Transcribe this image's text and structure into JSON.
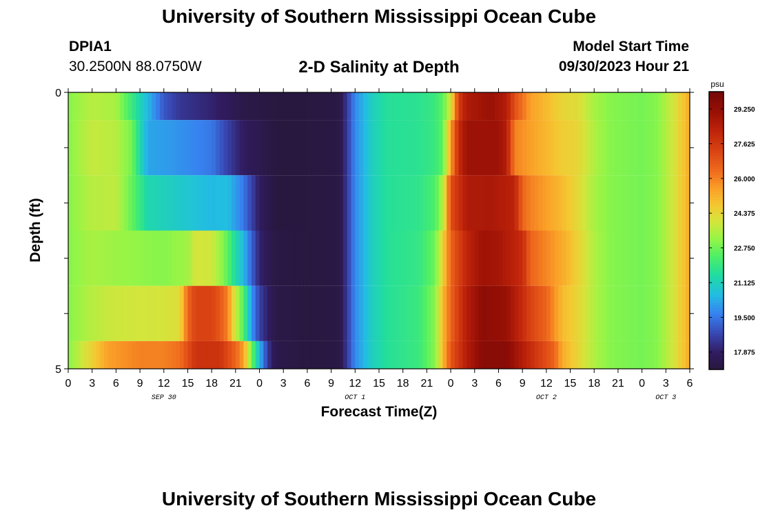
{
  "header": {
    "title": "University of Southern Mississippi Ocean Cube",
    "station": "DPIA1",
    "coords": "30.2500N  88.0750W",
    "plot_title": "2-D Salinity at Depth",
    "start_label": "Model Start Time",
    "start_value": "09/30/2023 Hour 21"
  },
  "footer": {
    "title": "University of Southern Mississippi Ocean Cube"
  },
  "chart_data": {
    "type": "heatmap",
    "title": "2-D Salinity at Depth",
    "xlabel": "Forecast Time(Z)",
    "ylabel": "Depth (ft)",
    "colorbar_unit": "psu",
    "colorbar_labels": [
      "29.250",
      "27.625",
      "26.000",
      "24.375",
      "22.750",
      "21.125",
      "19.500",
      "17.875"
    ],
    "colorbar_values": [
      29.25,
      27.625,
      26.0,
      24.375,
      22.75,
      21.125,
      19.5,
      17.875
    ],
    "vmin": 17.06,
    "vmax": 30.06,
    "x_tick_labels": [
      "0",
      "3",
      "6",
      "9",
      "12",
      "15",
      "18",
      "21",
      "0",
      "3",
      "6",
      "9",
      "12",
      "15",
      "18",
      "21",
      "0",
      "3",
      "6",
      "9",
      "12",
      "15",
      "18",
      "21",
      "0",
      "3",
      "6"
    ],
    "x_start_hour": 0,
    "x_end_hour": 78,
    "day_labels": [
      {
        "label": "SEP 30",
        "hour": 12
      },
      {
        "label": "OCT 1",
        "hour": 36
      },
      {
        "label": "OCT 2",
        "hour": 60
      },
      {
        "label": "OCT 3",
        "hour": 75
      }
    ],
    "y_tick_labels": [
      "0",
      "5"
    ],
    "y_range": [
      0,
      5
    ],
    "depth_levels": [
      0,
      1,
      2,
      3,
      4,
      5
    ],
    "profiles": [
      {
        "depth": 0,
        "points": [
          [
            0,
            23.0
          ],
          [
            3,
            23.6
          ],
          [
            6,
            23.4
          ],
          [
            8,
            22.0
          ],
          [
            10,
            20.5
          ],
          [
            12,
            19.0
          ],
          [
            14,
            18.4
          ],
          [
            18,
            18.0
          ],
          [
            20,
            17.7
          ],
          [
            22,
            17.3
          ],
          [
            26,
            17.1
          ],
          [
            30,
            17.1
          ],
          [
            34,
            17.2
          ],
          [
            35,
            18.5
          ],
          [
            36,
            19.8
          ],
          [
            38,
            21.0
          ],
          [
            40,
            21.6
          ],
          [
            44,
            21.7
          ],
          [
            46,
            22.0
          ],
          [
            47,
            22.5
          ],
          [
            48,
            24.0
          ],
          [
            49,
            27.5
          ],
          [
            50,
            28.6
          ],
          [
            53,
            29.1
          ],
          [
            55,
            28.5
          ],
          [
            56,
            27.0
          ],
          [
            58,
            25.5
          ],
          [
            60,
            25.0
          ],
          [
            62,
            24.4
          ],
          [
            64,
            24.2
          ],
          [
            66,
            23.4
          ],
          [
            68,
            23.0
          ],
          [
            72,
            22.8
          ],
          [
            74,
            23.0
          ],
          [
            76,
            24.0
          ],
          [
            78,
            25.3
          ]
        ]
      },
      {
        "depth": 1,
        "points": [
          [
            0,
            23.0
          ],
          [
            3,
            23.8
          ],
          [
            6,
            23.6
          ],
          [
            8,
            22.8
          ],
          [
            9,
            21.4
          ],
          [
            10,
            20.2
          ],
          [
            13,
            20.0
          ],
          [
            18,
            19.5
          ],
          [
            20,
            18.6
          ],
          [
            22,
            17.8
          ],
          [
            26,
            17.1
          ],
          [
            30,
            17.1
          ],
          [
            34,
            17.2
          ],
          [
            35,
            18.5
          ],
          [
            36,
            19.8
          ],
          [
            38,
            21.0
          ],
          [
            40,
            21.6
          ],
          [
            44,
            21.7
          ],
          [
            46,
            22.0
          ],
          [
            47,
            22.5
          ],
          [
            48,
            25.5
          ],
          [
            49,
            28.0
          ],
          [
            50,
            29.0
          ],
          [
            54,
            29.0
          ],
          [
            55,
            28.5
          ],
          [
            56,
            26.0
          ],
          [
            58,
            25.5
          ],
          [
            62,
            24.6
          ],
          [
            64,
            24.4
          ],
          [
            66,
            23.5
          ],
          [
            68,
            23.0
          ],
          [
            72,
            22.8
          ],
          [
            74,
            23.0
          ],
          [
            76,
            24.0
          ],
          [
            78,
            25.3
          ]
        ]
      },
      {
        "depth": 2,
        "points": [
          [
            0,
            23.0
          ],
          [
            3,
            23.6
          ],
          [
            6,
            23.7
          ],
          [
            8,
            22.6
          ],
          [
            10,
            21.3
          ],
          [
            13,
            21.0
          ],
          [
            18,
            20.5
          ],
          [
            20,
            20.6
          ],
          [
            22,
            19.5
          ],
          [
            24,
            17.8
          ],
          [
            26,
            17.1
          ],
          [
            30,
            17.1
          ],
          [
            34,
            17.2
          ],
          [
            35,
            18.5
          ],
          [
            36,
            19.8
          ],
          [
            38,
            21.0
          ],
          [
            40,
            21.6
          ],
          [
            44,
            21.8
          ],
          [
            46,
            22.3
          ],
          [
            47,
            23.5
          ],
          [
            48,
            27.0
          ],
          [
            50,
            28.6
          ],
          [
            53,
            28.7
          ],
          [
            56,
            28.3
          ],
          [
            57,
            26.5
          ],
          [
            58,
            26.0
          ],
          [
            62,
            25.0
          ],
          [
            64,
            24.3
          ],
          [
            66,
            23.4
          ],
          [
            68,
            23.0
          ],
          [
            72,
            22.8
          ],
          [
            74,
            23.0
          ],
          [
            76,
            24.0
          ],
          [
            78,
            25.3
          ]
        ]
      },
      {
        "depth": 3,
        "points": [
          [
            0,
            23.0
          ],
          [
            3,
            23.4
          ],
          [
            7,
            23.2
          ],
          [
            12,
            23.0
          ],
          [
            15,
            23.3
          ],
          [
            16,
            24.0
          ],
          [
            18,
            23.9
          ],
          [
            19,
            23.3
          ],
          [
            20,
            22.5
          ],
          [
            21,
            21.4
          ],
          [
            22,
            20.5
          ],
          [
            23,
            19.2
          ],
          [
            24,
            18.0
          ],
          [
            26,
            17.2
          ],
          [
            30,
            17.1
          ],
          [
            34,
            17.2
          ],
          [
            35,
            18.5
          ],
          [
            36,
            19.8
          ],
          [
            38,
            21.0
          ],
          [
            40,
            21.6
          ],
          [
            44,
            21.9
          ],
          [
            46,
            22.7
          ],
          [
            47,
            24.5
          ],
          [
            48,
            26.5
          ],
          [
            50,
            28.2
          ],
          [
            52,
            29.0
          ],
          [
            54,
            28.8
          ],
          [
            57,
            28.0
          ],
          [
            58,
            26.5
          ],
          [
            62,
            25.3
          ],
          [
            64,
            24.5
          ],
          [
            66,
            23.5
          ],
          [
            68,
            23.0
          ],
          [
            72,
            22.8
          ],
          [
            74,
            23.0
          ],
          [
            76,
            24.0
          ],
          [
            78,
            25.3
          ]
        ]
      },
      {
        "depth": 4,
        "points": [
          [
            0,
            23.0
          ],
          [
            3,
            23.6
          ],
          [
            6,
            23.9
          ],
          [
            12,
            24.0
          ],
          [
            14,
            24.2
          ],
          [
            15,
            26.5
          ],
          [
            16,
            27.3
          ],
          [
            18,
            27.3
          ],
          [
            19,
            26.8
          ],
          [
            20,
            26.0
          ],
          [
            21,
            23.8
          ],
          [
            22,
            22.4
          ],
          [
            23,
            20.0
          ],
          [
            24,
            18.6
          ],
          [
            26,
            17.3
          ],
          [
            30,
            17.1
          ],
          [
            34,
            17.2
          ],
          [
            35,
            18.5
          ],
          [
            36,
            19.8
          ],
          [
            38,
            21.0
          ],
          [
            40,
            21.6
          ],
          [
            44,
            22.0
          ],
          [
            46,
            23.0
          ],
          [
            47,
            25.0
          ],
          [
            48,
            26.5
          ],
          [
            50,
            28.5
          ],
          [
            52,
            29.4
          ],
          [
            55,
            29.1
          ],
          [
            57,
            28.0
          ],
          [
            58,
            27.3
          ],
          [
            60,
            26.5
          ],
          [
            62,
            25.0
          ],
          [
            64,
            24.4
          ],
          [
            66,
            23.5
          ],
          [
            68,
            23.0
          ],
          [
            72,
            22.8
          ],
          [
            74,
            23.0
          ],
          [
            76,
            24.0
          ],
          [
            78,
            25.3
          ]
        ]
      },
      {
        "depth": 5,
        "points": [
          [
            0,
            23.0
          ],
          [
            2,
            24.0
          ],
          [
            5,
            25.5
          ],
          [
            9,
            26.0
          ],
          [
            12,
            26.0
          ],
          [
            14,
            26.3
          ],
          [
            15,
            27.0
          ],
          [
            16,
            27.8
          ],
          [
            19,
            27.8
          ],
          [
            21,
            26.5
          ],
          [
            22,
            25.5
          ],
          [
            23,
            22.8
          ],
          [
            24,
            20.5
          ],
          [
            25,
            18.5
          ],
          [
            26,
            17.4
          ],
          [
            30,
            17.1
          ],
          [
            34,
            17.2
          ],
          [
            35,
            18.5
          ],
          [
            36,
            19.8
          ],
          [
            38,
            21.0
          ],
          [
            40,
            21.6
          ],
          [
            44,
            22.0
          ],
          [
            46,
            23.0
          ],
          [
            47,
            25.0
          ],
          [
            48,
            26.8
          ],
          [
            50,
            28.5
          ],
          [
            52,
            29.5
          ],
          [
            55,
            29.5
          ],
          [
            57,
            28.5
          ],
          [
            59,
            27.5
          ],
          [
            61,
            26.5
          ],
          [
            62,
            25.3
          ],
          [
            64,
            24.4
          ],
          [
            66,
            23.5
          ],
          [
            68,
            23.0
          ],
          [
            72,
            22.8
          ],
          [
            74,
            23.0
          ],
          [
            76,
            24.0
          ],
          [
            78,
            25.3
          ]
        ]
      }
    ]
  }
}
